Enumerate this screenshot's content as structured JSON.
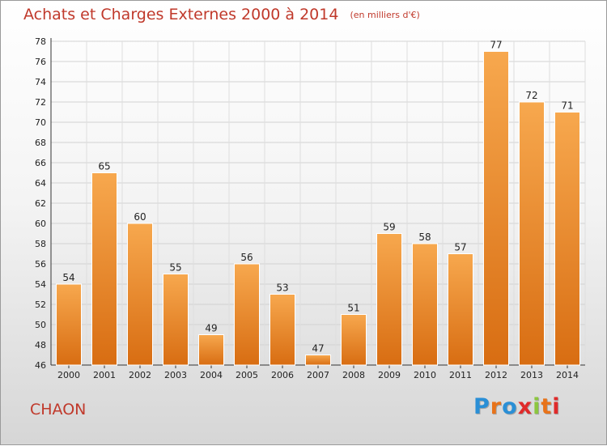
{
  "header": {
    "title": "Achats et Charges Externes 2000 à 2014",
    "subtitle": "(en milliers d'€)"
  },
  "footer": {
    "commune": "CHAON",
    "logo_text": "Proxiti",
    "logo_colors": [
      "#2a8fd6",
      "#e8731a",
      "#2a8fd6",
      "#e02a2a",
      "#8cc63f",
      "#e8731a",
      "#e02a2a"
    ]
  },
  "chart_data": {
    "type": "bar",
    "categories": [
      "2000",
      "2001",
      "2002",
      "2003",
      "2004",
      "2005",
      "2006",
      "2007",
      "2008",
      "2009",
      "2010",
      "2011",
      "2012",
      "2013",
      "2014"
    ],
    "values": [
      54,
      65,
      60,
      55,
      49,
      56,
      53,
      47,
      51,
      59,
      58,
      57,
      77,
      72,
      71
    ],
    "ylim": [
      46,
      78
    ],
    "yticks": [
      46,
      48,
      50,
      52,
      54,
      56,
      58,
      60,
      62,
      64,
      66,
      68,
      70,
      72,
      74,
      76,
      78
    ],
    "grid": true,
    "bar_color_light": "#f7a84e",
    "bar_color_dark": "#d86d12"
  }
}
